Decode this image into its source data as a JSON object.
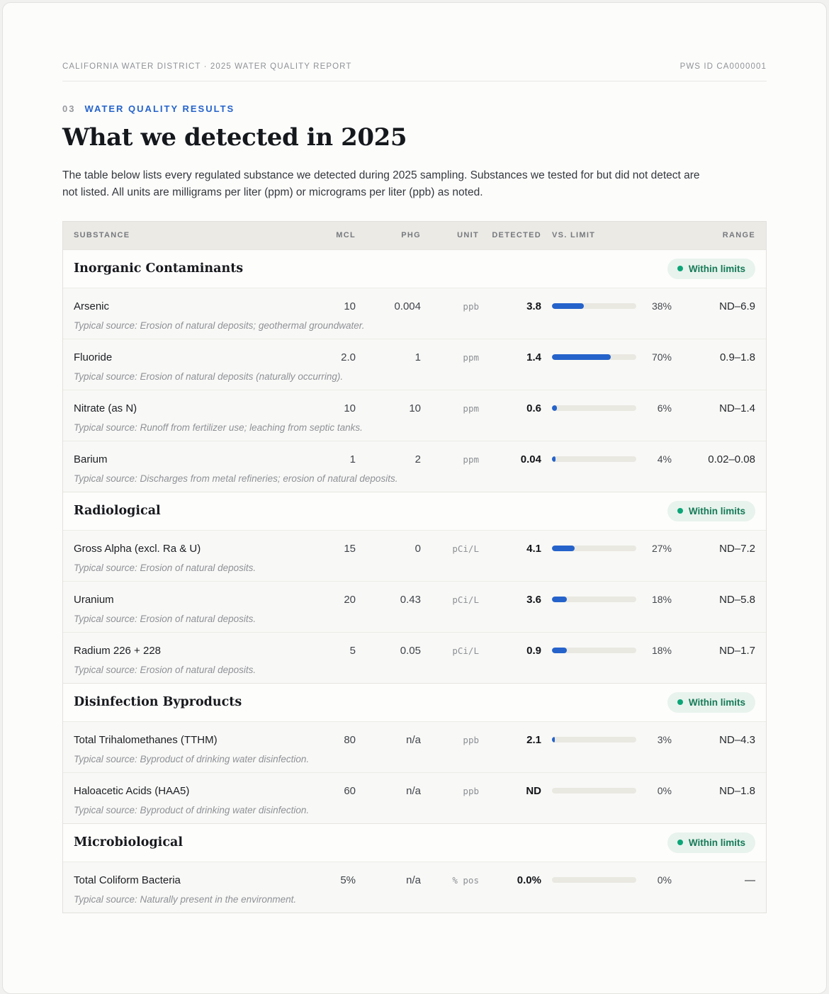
{
  "page": {
    "header_left": "CALIFORNIA WATER DISTRICT · 2025 WATER QUALITY REPORT",
    "header_right": "PWS ID CA0000001"
  },
  "section": {
    "eyebrow_number": "03",
    "eyebrow_label": "WATER QUALITY RESULTS",
    "title": "What we detected in 2025",
    "intro": "The table below lists every regulated substance we detected during 2025 sampling. Substances we tested for but did not detect are not listed. All units are milligrams per liter (ppm) or micrograms per liter (ppb) as noted."
  },
  "colors": {
    "accent_blue": "#2563cb",
    "bar_track": "#e9e8e1",
    "badge_bg": "#e8f3ed",
    "badge_dot": "#0ca678",
    "badge_text": "#157a58"
  },
  "table": {
    "columns": {
      "substance": "SUBSTANCE",
      "mcl": "MCL",
      "phg": "PHG",
      "unit": "UNIT",
      "detected": "DETECTED",
      "vs_limit": "VS. LIMIT",
      "range": "RANGE"
    },
    "groups": [
      {
        "name": "Inorganic Contaminants",
        "status": "Within limits",
        "rows": [
          {
            "substance": "Arsenic",
            "mcl": "10",
            "phg": "0.004",
            "unit": "ppb",
            "detected": "3.8",
            "pct_of_limit": 38,
            "pct_label": "38%",
            "range": "ND–6.9",
            "source": "Typical source: Erosion of natural deposits; geothermal groundwater."
          },
          {
            "substance": "Fluoride",
            "mcl": "2.0",
            "phg": "1",
            "unit": "ppm",
            "detected": "1.4",
            "pct_of_limit": 70,
            "pct_label": "70%",
            "range": "0.9–1.8",
            "source": "Typical source: Erosion of natural deposits (naturally occurring)."
          },
          {
            "substance": "Nitrate (as N)",
            "mcl": "10",
            "phg": "10",
            "unit": "ppm",
            "detected": "0.6",
            "pct_of_limit": 6,
            "pct_label": "6%",
            "range": "ND–1.4",
            "source": "Typical source: Runoff from fertilizer use; leaching from septic tanks."
          },
          {
            "substance": "Barium",
            "mcl": "1",
            "phg": "2",
            "unit": "ppm",
            "detected": "0.04",
            "pct_of_limit": 4,
            "pct_label": "4%",
            "range": "0.02–0.08",
            "source": "Typical source: Discharges from metal refineries; erosion of natural deposits."
          }
        ]
      },
      {
        "name": "Radiological",
        "status": "Within limits",
        "rows": [
          {
            "substance": "Gross Alpha (excl. Ra & U)",
            "mcl": "15",
            "phg": "0",
            "unit": "pCi/L",
            "detected": "4.1",
            "pct_of_limit": 27,
            "pct_label": "27%",
            "range": "ND–7.2",
            "source": "Typical source: Erosion of natural deposits."
          },
          {
            "substance": "Uranium",
            "mcl": "20",
            "phg": "0.43",
            "unit": "pCi/L",
            "detected": "3.6",
            "pct_of_limit": 18,
            "pct_label": "18%",
            "range": "ND–5.8",
            "source": "Typical source: Erosion of natural deposits."
          },
          {
            "substance": "Radium 226 + 228",
            "mcl": "5",
            "phg": "0.05",
            "unit": "pCi/L",
            "detected": "0.9",
            "pct_of_limit": 18,
            "pct_label": "18%",
            "range": "ND–1.7",
            "source": "Typical source: Erosion of natural deposits."
          }
        ]
      },
      {
        "name": "Disinfection Byproducts",
        "status": "Within limits",
        "rows": [
          {
            "substance": "Total Trihalomethanes (TTHM)",
            "mcl": "80",
            "phg": "n/a",
            "unit": "ppb",
            "detected": "2.1",
            "pct_of_limit": 3,
            "pct_label": "3%",
            "range": "ND–4.3",
            "source": "Typical source: Byproduct of drinking water disinfection."
          },
          {
            "substance": "Haloacetic Acids (HAA5)",
            "mcl": "60",
            "phg": "n/a",
            "unit": "ppb",
            "detected": "ND",
            "pct_of_limit": 0,
            "pct_label": "0%",
            "range": "ND–1.8",
            "source": "Typical source: Byproduct of drinking water disinfection."
          }
        ]
      },
      {
        "name": "Microbiological",
        "status": "Within limits",
        "rows": [
          {
            "substance": "Total Coliform Bacteria",
            "mcl": "5%",
            "phg": "n/a",
            "unit": "% pos",
            "detected": "0.0%",
            "pct_of_limit": 0,
            "pct_label": "0%",
            "range": "—",
            "source": "Typical source: Naturally present in the environment."
          }
        ]
      }
    ]
  }
}
